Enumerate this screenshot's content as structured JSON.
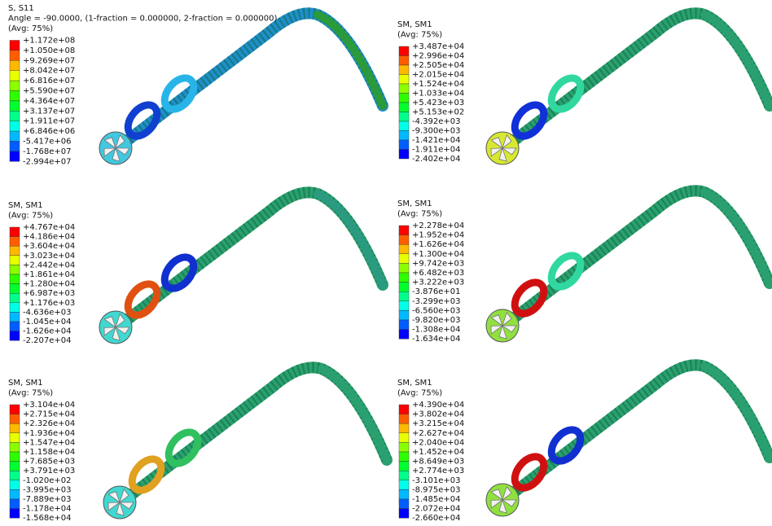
{
  "panels": [
    {
      "header": [
        "S, S11",
        "Angle = -90.0000, (1-fraction = 0.000000, 2-fraction = 0.000000)",
        "(Avg: 75%)"
      ],
      "legend": [
        "+1.172e+08",
        "+1.050e+08",
        "+9.269e+07",
        "+8.042e+07",
        "+6.816e+07",
        "+5.590e+07",
        "+4.364e+07",
        "+3.137e+07",
        "+1.911e+07",
        "+6.846e+06",
        "-5.417e+06",
        "-1.768e+07",
        "-2.994e+07"
      ]
    },
    {
      "header": [
        "SM, SM1",
        "(Avg: 75%)"
      ],
      "legend": [
        "+3.487e+04",
        "+2.996e+04",
        "+2.505e+04",
        "+2.015e+04",
        "+1.524e+04",
        "+1.033e+04",
        "+5.423e+03",
        "+5.153e+02",
        "-4.392e+03",
        "-9.300e+03",
        "-1.421e+04",
        "-1.911e+04",
        "-2.402e+04"
      ]
    },
    {
      "header": [
        "SM, SM1",
        "(Avg: 75%)"
      ],
      "legend": [
        "+4.767e+04",
        "+4.186e+04",
        "+3.604e+04",
        "+3.023e+04",
        "+2.442e+04",
        "+1.861e+04",
        "+1.280e+04",
        "+6.987e+03",
        "+1.176e+03",
        "-4.636e+03",
        "-1.045e+04",
        "-1.626e+04",
        "-2.207e+04"
      ]
    },
    {
      "header": [
        "SM, SM1",
        "(Avg: 75%)"
      ],
      "legend": [
        "+2.278e+04",
        "+1.952e+04",
        "+1.626e+04",
        "+1.300e+04",
        "+9.742e+03",
        "+6.482e+03",
        "+3.222e+03",
        "-3.876e+01",
        "-3.299e+03",
        "-6.560e+03",
        "-9.820e+03",
        "-1.308e+04",
        "-1.634e+04"
      ]
    },
    {
      "header": [
        "SM, SM1",
        "(Avg: 75%)"
      ],
      "legend": [
        "+3.104e+04",
        "+2.715e+04",
        "+2.326e+04",
        "+1.936e+04",
        "+1.547e+04",
        "+1.158e+04",
        "+7.685e+03",
        "+3.791e+03",
        "-1.020e+02",
        "-3.995e+03",
        "-7.889e+03",
        "-1.178e+04",
        "-1.568e+04"
      ]
    },
    {
      "header": [
        "SM, SM1",
        "(Avg: 75%)"
      ],
      "legend": [
        "+4.390e+04",
        "+3.802e+04",
        "+3.215e+04",
        "+2.627e+04",
        "+2.040e+04",
        "+1.452e+04",
        "+8.649e+03",
        "+2.774e+03",
        "-3.101e+03",
        "-8.975e+03",
        "-1.485e+04",
        "-2.072e+04",
        "-2.660e+04"
      ]
    }
  ]
}
